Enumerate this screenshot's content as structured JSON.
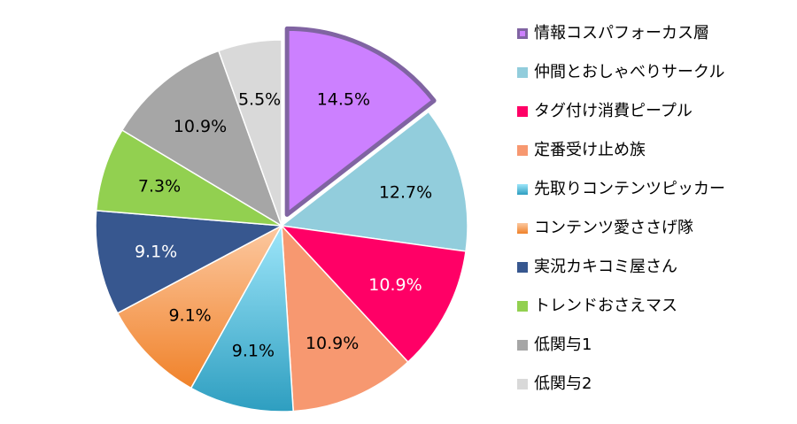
{
  "chart_data": {
    "type": "pie",
    "title": "",
    "categories": [
      "情報コスパフォーカス層",
      "仲間とおしゃべりサークル",
      "タグ付け消費ピープル",
      "定番受け止め族",
      "先取りコンテンツピッカー",
      "コンテンツ愛ささげ隊",
      "実況カキコミ屋さん",
      "トレンドおさえマス",
      "低関与1",
      "低関与2"
    ],
    "values": [
      14.5,
      12.7,
      10.9,
      10.9,
      9.1,
      9.1,
      9.1,
      7.3,
      10.9,
      5.5
    ],
    "labels": [
      "14.5%",
      "12.7%",
      "10.9%",
      "10.9%",
      "9.1%",
      "9.1%",
      "9.1%",
      "7.3%",
      "10.9%",
      "5.5%"
    ],
    "colors": [
      "#cc80ff",
      "#92cddc",
      "#ff0066",
      "#f79870",
      "#4bacc6",
      "#f9a05c",
      "#37578f",
      "#92d050",
      "#a6a6a6",
      "#d9d9d9"
    ],
    "exploded": "情報コスパフォーカス層",
    "exploded_outline": "#8064a2",
    "label_colors": [
      "#000000",
      "#000000",
      "#ffffff",
      "#000000",
      "#000000",
      "#000000",
      "#ffffff",
      "#000000",
      "#000000",
      "#000000"
    ],
    "legend_position": "right"
  }
}
